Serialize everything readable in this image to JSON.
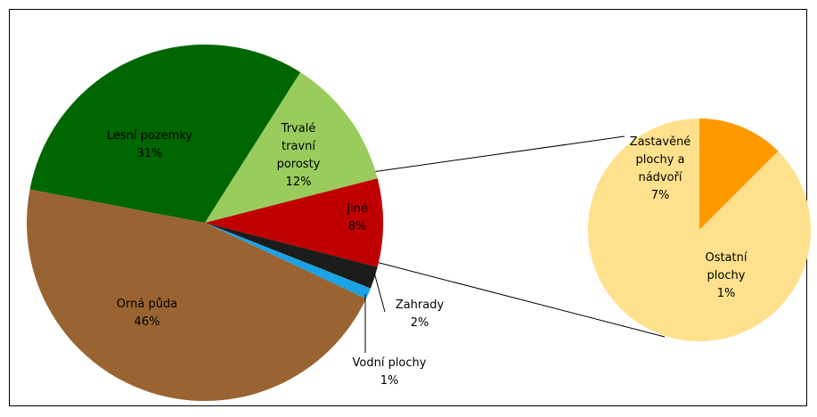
{
  "chart_data": {
    "type": "pie-of-pie",
    "categories": [
      "Orná půda",
      "Lesní pozemky",
      "Trvalé travní porosty",
      "Jiné",
      "Zahrady",
      "Vodní plochy"
    ],
    "values": [
      46,
      31,
      12,
      8,
      2,
      1
    ],
    "value_labels": [
      "46%",
      "31%",
      "12%",
      "8%",
      "2%",
      "1%"
    ],
    "colors": [
      "#9a6432",
      "#006600",
      "#99cc5c",
      "#c00000",
      "#1c1c1a",
      "#1aa3e6"
    ],
    "secondary": {
      "categories": [
        "Zastavěné plochy a nádvoří",
        "Ostatní plochy"
      ],
      "values": [
        7,
        1
      ],
      "value_labels": [
        "7%",
        "1%"
      ],
      "colors": [
        "#ffe08c",
        "#ff9900"
      ]
    }
  }
}
